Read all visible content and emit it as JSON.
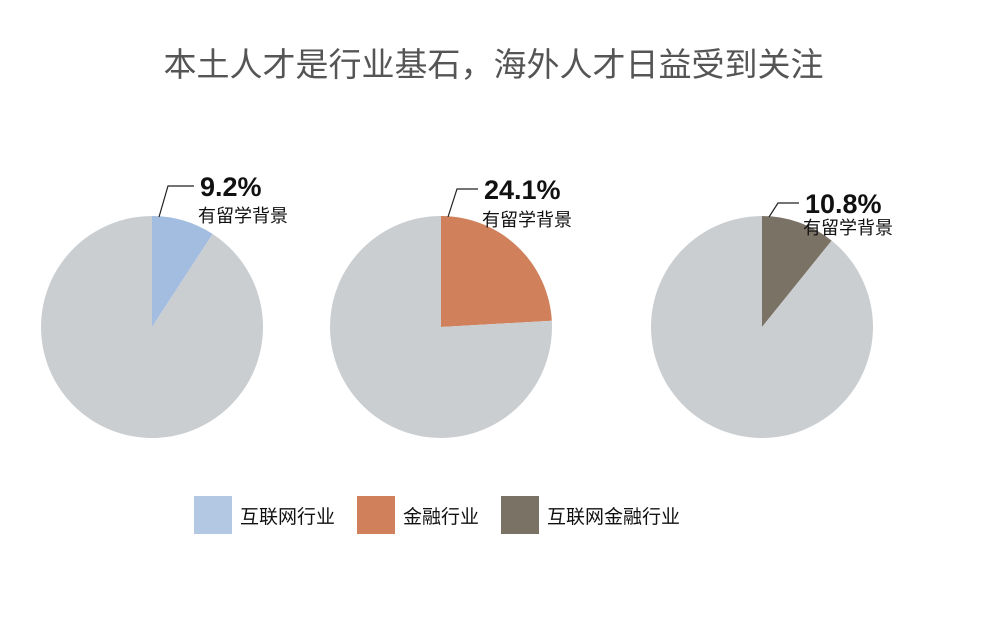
{
  "title": "本土人才是行业基石，海外人才日益受到关注",
  "chart_data": [
    {
      "type": "pie",
      "name": "互联网行业",
      "value_label": "9.2%",
      "sub_label": "有留学背景",
      "slices": [
        {
          "label": "有留学背景",
          "value": 9.2,
          "color": "#a3bde0"
        },
        {
          "label": "",
          "value": 90.8,
          "color": "#cbced1"
        }
      ]
    },
    {
      "type": "pie",
      "name": "金融行业",
      "value_label": "24.1%",
      "sub_label": "有留学背景",
      "slices": [
        {
          "label": "有留学背景",
          "value": 24.1,
          "color": "#d0805a"
        },
        {
          "label": "",
          "value": 75.9,
          "color": "#cbced1"
        }
      ]
    },
    {
      "type": "pie",
      "name": "互联网金融行业",
      "value_label": "10.8%",
      "sub_label": "有留学背景",
      "slices": [
        {
          "label": "有留学背景",
          "value": 10.8,
          "color": "#7b7266"
        },
        {
          "label": "",
          "value": 89.2,
          "color": "#cbced1"
        }
      ]
    }
  ],
  "legend": [
    {
      "label": "互联网行业",
      "color": "#b3c9e3"
    },
    {
      "label": "金融行业",
      "color": "#d0805a"
    },
    {
      "label": "互联网金融行业",
      "color": "#7b7266"
    }
  ]
}
